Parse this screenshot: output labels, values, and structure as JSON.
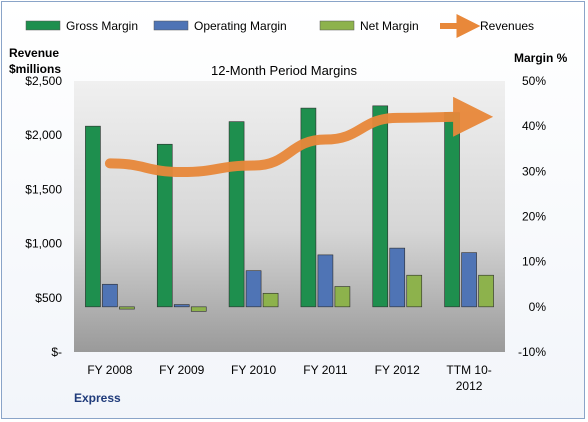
{
  "chart_data": {
    "type": "bar",
    "title": "12-Month Period Margins",
    "left_axis_title_line1": "Revenue",
    "left_axis_title_line2": "$millions",
    "right_axis_title": "Margin %",
    "footer": "Express",
    "categories": [
      [
        "FY 2008"
      ],
      [
        "FY 2009"
      ],
      [
        "FY 2010"
      ],
      [
        "FY 2011"
      ],
      [
        "FY 2012"
      ],
      [
        "TTM 10-",
        "2012"
      ]
    ],
    "left_axis": {
      "ylim": [
        0,
        2500
      ],
      "ticks": [
        0,
        500,
        1000,
        1500,
        2000,
        2500
      ],
      "tick_labels": [
        "$-",
        "$500",
        "$1,000",
        "$1,500",
        "$2,000",
        "$2,500"
      ]
    },
    "right_axis": {
      "ylim": [
        -10,
        50
      ],
      "ticks": [
        -10,
        0,
        10,
        20,
        30,
        40,
        50
      ],
      "tick_labels": [
        "-10%",
        "0%",
        "10%",
        "20%",
        "30%",
        "40%",
        "50%"
      ]
    },
    "series": [
      {
        "name": "Gross Margin",
        "kind": "bar",
        "axis": "right",
        "color": "#1e8f4e",
        "values": [
          40,
          36,
          41,
          44,
          44.5,
          43
        ]
      },
      {
        "name": "Operating Margin",
        "kind": "bar",
        "axis": "right",
        "color": "#4f74b5",
        "values": [
          5,
          0.5,
          8,
          11.5,
          13,
          12
        ]
      },
      {
        "name": "Net Margin",
        "kind": "bar",
        "axis": "right",
        "color": "#8db24c",
        "values": [
          -0.5,
          -1,
          3,
          4.5,
          7,
          7
        ]
      },
      {
        "name": "Revenues",
        "kind": "line",
        "axis": "left",
        "color": "#e8883a",
        "values": [
          1740,
          1660,
          1720,
          1960,
          2160,
          2170
        ]
      }
    ],
    "grid": false,
    "legend_position": "top"
  }
}
